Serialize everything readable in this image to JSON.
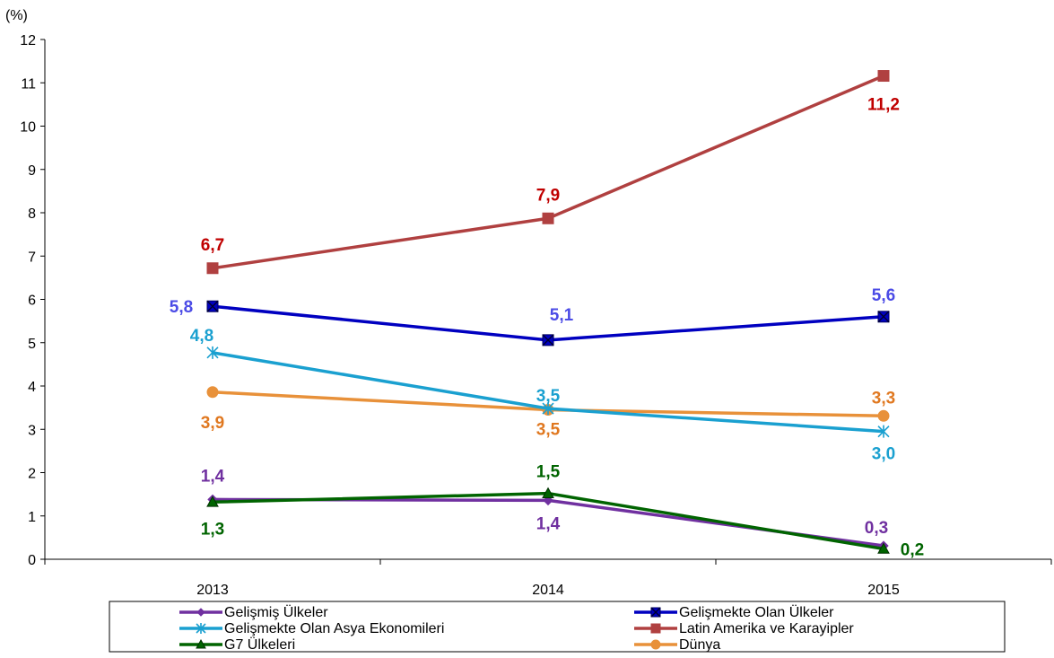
{
  "chart_data": {
    "type": "line",
    "unit_label": "(%)",
    "categories": [
      "2013",
      "2014",
      "2015"
    ],
    "ylim": [
      0,
      12
    ],
    "yticks": [
      0,
      1,
      2,
      3,
      4,
      5,
      6,
      7,
      8,
      9,
      10,
      11,
      12
    ],
    "grid": false,
    "legend_position": "bottom",
    "series": [
      {
        "name": "Gelişmiş Ülkeler",
        "values": [
          1.38,
          1.36,
          0.31
        ],
        "labels": [
          "1,4",
          "1,4",
          "0,3"
        ],
        "color": "#7030A0",
        "marker": "diamond",
        "label_color": "#7030A0"
      },
      {
        "name": "Gelişmekte Olan Ülkeler",
        "values": [
          5.84,
          5.06,
          5.6
        ],
        "labels": [
          "5,8",
          "5,1",
          "5,6"
        ],
        "color": "#0000C0",
        "marker": "square-x",
        "label_color": "#4B4BE6"
      },
      {
        "name": "Gelişmekte Olan Asya Ekonomileri",
        "values": [
          4.77,
          3.48,
          2.95
        ],
        "labels": [
          "4,8",
          "3,5",
          "3,0"
        ],
        "color": "#1AA0D0",
        "marker": "asterisk",
        "label_color": "#1AA0D0"
      },
      {
        "name": "Latin Amerika ve Karayipler",
        "values": [
          6.72,
          7.87,
          11.16
        ],
        "labels": [
          "6,7",
          "7,9",
          "11,2"
        ],
        "color": "#B04040",
        "marker": "square",
        "label_color": "#C00000"
      },
      {
        "name": "G7 Ülkeleri",
        "values": [
          1.32,
          1.52,
          0.24
        ],
        "labels": [
          "1,3",
          "1,5",
          "0,2"
        ],
        "color": "#006400",
        "marker": "triangle",
        "label_color": "#006400"
      },
      {
        "name": "Dünya",
        "values": [
          3.86,
          3.45,
          3.31
        ],
        "labels": [
          "3,9",
          "3,5",
          "3,3"
        ],
        "color": "#E8913A",
        "marker": "circle",
        "label_color": "#E07820"
      }
    ]
  }
}
